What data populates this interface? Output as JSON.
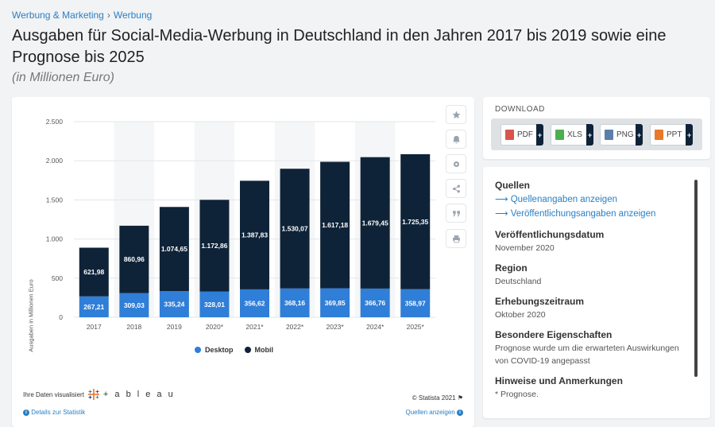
{
  "breadcrumb": {
    "part1": "Werbung & Marketing",
    "separator": "›",
    "part2": "Werbung"
  },
  "title": "Ausgaben für Social-Media-Werbung in Deutschland in den Jahren 2017 bis 2019 sowie eine Prognose bis 2025",
  "subtitle": "(in Millionen Euro)",
  "tools": [
    "star-icon",
    "bell-icon",
    "gear-icon",
    "share-icon",
    "quote-icon",
    "print-icon"
  ],
  "chart_data": {
    "type": "bar",
    "stacked": true,
    "categories": [
      "2017",
      "2018",
      "2019",
      "2020*",
      "2021*",
      "2022*",
      "2023*",
      "2024*",
      "2025*"
    ],
    "series": [
      {
        "name": "Desktop",
        "color": "#2f7ed8",
        "values": [
          267.21,
          309.03,
          335.24,
          328.01,
          356.62,
          368.16,
          369.85,
          366.76,
          358.97
        ],
        "labels": [
          "267,21",
          "309,03",
          "335,24",
          "328,01",
          "356,62",
          "368,16",
          "369,85",
          "366,76",
          "358,97"
        ]
      },
      {
        "name": "Mobil",
        "color": "#0f2338",
        "values": [
          621.98,
          860.96,
          1074.65,
          1172.86,
          1387.83,
          1530.07,
          1617.18,
          1679.45,
          1725.35
        ],
        "labels": [
          "621,98",
          "860,96",
          "1.074,65",
          "1.172,86",
          "1.387,83",
          "1.530,07",
          "1.617,18",
          "1.679,45",
          "1.725,35"
        ]
      }
    ],
    "ylabel": "Ausgaben in Millionen Euro",
    "xlabel": "",
    "ylim": [
      0,
      2500
    ],
    "yticks": [
      0,
      500,
      1000,
      1500,
      2000,
      2500
    ],
    "ytick_labels": [
      "0",
      "500",
      "1.000",
      "1.500",
      "2.000",
      "2.500"
    ],
    "grid": true,
    "legend": "bottom"
  },
  "footer": {
    "visualized": "Ihre Daten visualisiert",
    "tableau": "+ a b l e a u",
    "copyright": "© Statista 2021",
    "details_link": "Details zur Statistik",
    "sources_link": "Quellen anzeigen"
  },
  "download": {
    "heading": "DOWNLOAD",
    "buttons": [
      {
        "label": "PDF",
        "color": "#d9534f"
      },
      {
        "label": "XLS",
        "color": "#4caf50"
      },
      {
        "label": "PNG",
        "color": "#5b7fa8"
      },
      {
        "label": "PPT",
        "color": "#e8782a"
      }
    ],
    "plus": "+"
  },
  "sources": {
    "heading": "Quellen",
    "link1": "Quellenangaben anzeigen",
    "link2": "Veröffentlichungsangaben anzeigen",
    "arrow": "⟶",
    "pubdate_heading": "Veröffentlichungsdatum",
    "pubdate": "November 2020",
    "region_heading": "Region",
    "region": "Deutschland",
    "period_heading": "Erhebungszeitraum",
    "period": "Oktober 2020",
    "special_heading": "Besondere Eigenschaften",
    "special": "Prognose wurde um die erwarteten Auswirkungen von COVID-19 angepasst",
    "notes_heading": "Hinweise und Anmerkungen",
    "notes": "* Prognose."
  }
}
